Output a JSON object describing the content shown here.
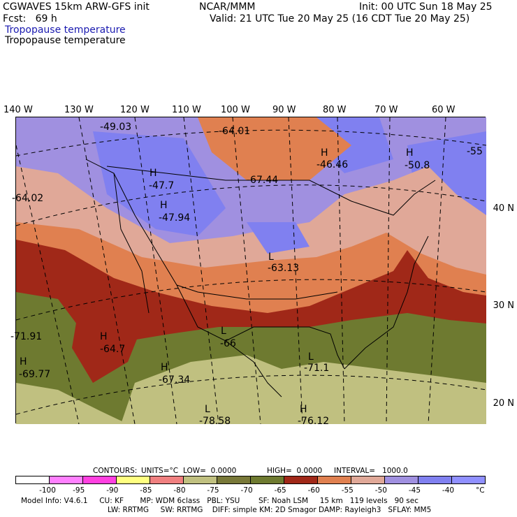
{
  "header": {
    "left1": "CGWAVES 15km ARW-GFS init",
    "center1": "NCAR/MMM",
    "right1": "Init: 00 UTC Sun 18 May 25",
    "left2": "Fcst:   69 h",
    "right2": "Valid: 21 UTC Tue 20 May 25 (16 CDT Tue 20 May 25)",
    "field1": "Tropopause temperature",
    "field2": "Tropopause temperature"
  },
  "lon_labels": [
    "140 W",
    "130 W",
    "120 W",
    "110 W",
    "100 W",
    "90 W",
    "80 W",
    "70 W",
    "60 W"
  ],
  "lat_labels": [
    "40 N",
    "30 N",
    "20 N"
  ],
  "map_labels": [
    {
      "text": "-49.03"
    },
    {
      "text": "-64.01"
    },
    {
      "text": "H"
    },
    {
      "text": "-46.46"
    },
    {
      "text": "H"
    },
    {
      "text": "-50.8"
    },
    {
      "text": "-55"
    },
    {
      "text": "H"
    },
    {
      "text": "-47.7"
    },
    {
      "text": "-67.44"
    },
    {
      "text": "-64.02"
    },
    {
      "text": "H"
    },
    {
      "text": "-47.94"
    },
    {
      "text": "L"
    },
    {
      "text": "-63.13"
    },
    {
      "text": "-71.91"
    },
    {
      "text": "H"
    },
    {
      "text": "-64.7"
    },
    {
      "text": "L"
    },
    {
      "text": "-66"
    },
    {
      "text": "H"
    },
    {
      "text": "-69.77"
    },
    {
      "text": "H"
    },
    {
      "text": "-67.34"
    },
    {
      "text": "L"
    },
    {
      "text": "-71.1"
    },
    {
      "text": "L"
    },
    {
      "text": "-78.58"
    },
    {
      "text": "H"
    },
    {
      "text": "-76.12"
    }
  ],
  "contour_info": {
    "contours": "CONTOURS:",
    "units": "UNITS=°C",
    "low": "LOW=  0.0000",
    "high": "HIGH=  0.0000",
    "interval": "INTERVAL=   1000.0"
  },
  "colorbar": {
    "colors": [
      "#ffffff",
      "#ff80ff",
      "#ff40e0",
      "#ffff80",
      "#f08080",
      "#c0c080",
      "#787838",
      "#6e7a30",
      "#a02818",
      "#e08050",
      "#e0a898",
      "#a090e0",
      "#8080f0",
      "#9090ff"
    ],
    "labels": [
      "-100",
      "-95",
      "-90",
      "-85",
      "-80",
      "-75",
      "-70",
      "-65",
      "-60",
      "-55",
      "-50",
      "-45",
      "-40",
      "°C"
    ]
  },
  "model_info": {
    "line1": "Model Info: V4.6.1     CU: KF       MP: WDM 6class   PBL: YSU        SF: Noah LSM     15 km   119 levels   90 sec",
    "line2": "LW: RRTMG     SW: RRTMG    DIFF: simple KM: 2D Smagor DAMP: Rayleigh3   SFLAY: MM5"
  },
  "colors": {
    "purple_high": "#a090e0",
    "blue_high": "#8080f0",
    "pink_mid": "#e0a898",
    "orange_mid": "#e08050",
    "red_low": "#a02818",
    "olive_low": "#6e7a30",
    "khaki_lowest": "#c0c080"
  }
}
